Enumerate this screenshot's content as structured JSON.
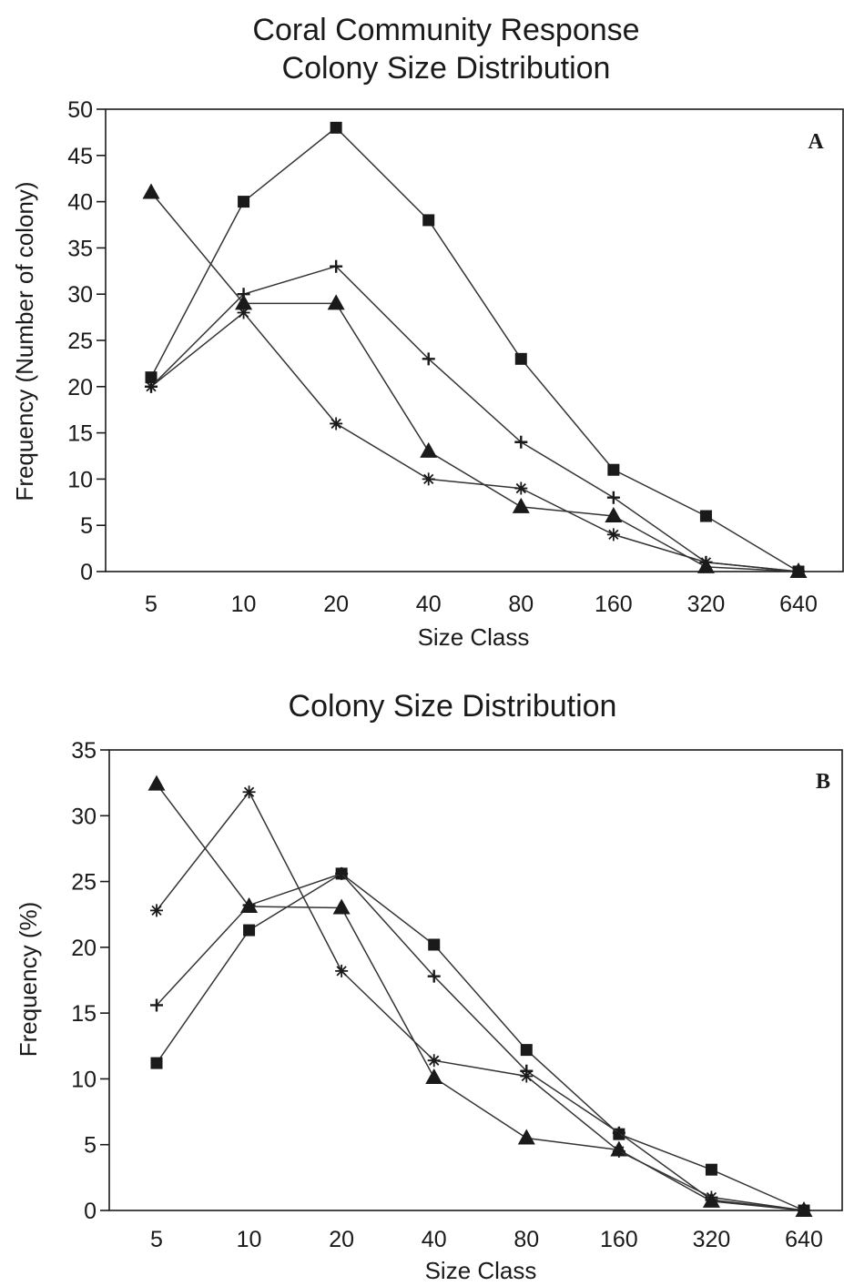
{
  "chart_data": [
    {
      "type": "line",
      "title_lines": [
        "Coral Community Response",
        "Colony Size Distribution"
      ],
      "panel_label": "A",
      "xlabel": "Size Class",
      "ylabel": "Frequency (Number of colony)",
      "categories": [
        "5",
        "10",
        "20",
        "40",
        "80",
        "160",
        "320",
        "640"
      ],
      "ylim": [
        0,
        50
      ],
      "yticks": [
        "0",
        "5",
        "10",
        "15",
        "20",
        "25",
        "30",
        "35",
        "40",
        "45",
        "50"
      ],
      "grid": false,
      "series": [
        {
          "marker": "square",
          "values": [
            21,
            40,
            48,
            38,
            23,
            11,
            6,
            0
          ]
        },
        {
          "marker": "plus",
          "values": [
            20,
            30,
            33,
            23,
            14,
            8,
            1,
            0
          ]
        },
        {
          "marker": "triangle",
          "values": [
            41,
            29,
            29,
            13,
            7,
            6,
            0.5,
            0
          ]
        },
        {
          "marker": "asterisk",
          "values": [
            20,
            28,
            16,
            10,
            9,
            4,
            1,
            0
          ]
        }
      ]
    },
    {
      "type": "line",
      "title_lines": [
        "Colony Size Distribution"
      ],
      "panel_label": "B",
      "xlabel": "Size Class",
      "ylabel": "Frequency (%)",
      "categories": [
        "5",
        "10",
        "20",
        "40",
        "80",
        "160",
        "320",
        "640"
      ],
      "ylim": [
        0,
        35
      ],
      "yticks": [
        "0",
        "5",
        "10",
        "15",
        "20",
        "25",
        "30",
        "35"
      ],
      "grid": false,
      "series": [
        {
          "marker": "square",
          "values": [
            11.2,
            21.3,
            25.6,
            20.2,
            12.2,
            5.8,
            3.1,
            0
          ]
        },
        {
          "marker": "plus",
          "values": [
            15.6,
            23.2,
            25.6,
            17.8,
            10.6,
            5.9,
            0.8,
            0
          ]
        },
        {
          "marker": "triangle",
          "values": [
            32.4,
            23.1,
            23,
            10.1,
            5.5,
            4.6,
            0.7,
            0
          ]
        },
        {
          "marker": "asterisk",
          "values": [
            22.8,
            31.8,
            18.2,
            11.4,
            10.2,
            4.5,
            1,
            0
          ]
        }
      ]
    }
  ],
  "colors": {
    "ink": "#1a1a1a",
    "line": "#333333",
    "background": "#ffffff"
  }
}
